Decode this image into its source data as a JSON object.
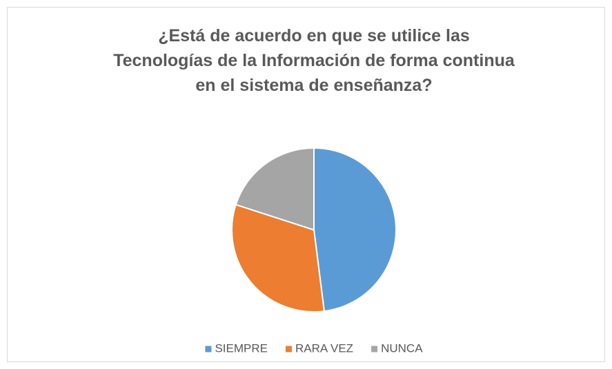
{
  "chart_data": {
    "type": "pie",
    "title": [
      "¿Está de acuerdo en que se utilice las",
      "Tecnologías de la Información de forma continua",
      "en el sistema de enseñanza?"
    ],
    "categories": [
      "SIEMPRE",
      "RARA VEZ",
      "NUNCA"
    ],
    "values": [
      48,
      32,
      20
    ],
    "colors": [
      "#5b9bd5",
      "#ed7d31",
      "#a5a5a5"
    ],
    "legend": "bottom"
  }
}
